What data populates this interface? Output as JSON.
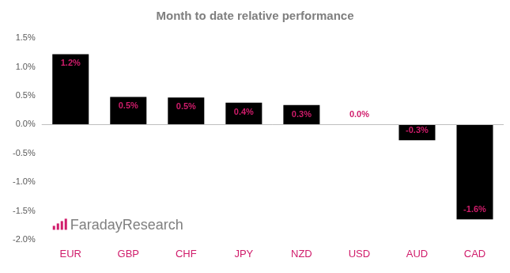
{
  "chart_data": {
    "type": "bar",
    "title": "Month to date relative performance",
    "categories": [
      "EUR",
      "GBP",
      "CHF",
      "JPY",
      "NZD",
      "USD",
      "AUD",
      "CAD"
    ],
    "values": [
      1.22,
      0.48,
      0.47,
      0.38,
      0.34,
      0.0,
      -0.27,
      -1.64
    ],
    "value_labels": [
      "1.2%",
      "0.5%",
      "0.5%",
      "0.4%",
      "0.3%",
      "0.0%",
      "-0.3%",
      "-1.6%"
    ],
    "color": "#000000",
    "ylim": [
      -2.0,
      1.5
    ],
    "yticks": [
      {
        "value": -2.0,
        "label": "-2.0%"
      },
      {
        "value": -1.5,
        "label": "-1.5%"
      },
      {
        "value": -1.0,
        "label": "-1.0%"
      },
      {
        "value": -0.5,
        "label": "-0.5%"
      },
      {
        "value": 0.0,
        "label": "0.0%"
      },
      {
        "value": 0.5,
        "label": "0.5%"
      },
      {
        "value": 1.0,
        "label": "1.0%"
      },
      {
        "value": 1.5,
        "label": "1.5%"
      }
    ],
    "grid": false,
    "data_labels": true,
    "annotations": [
      "FaradayResearch"
    ]
  }
}
